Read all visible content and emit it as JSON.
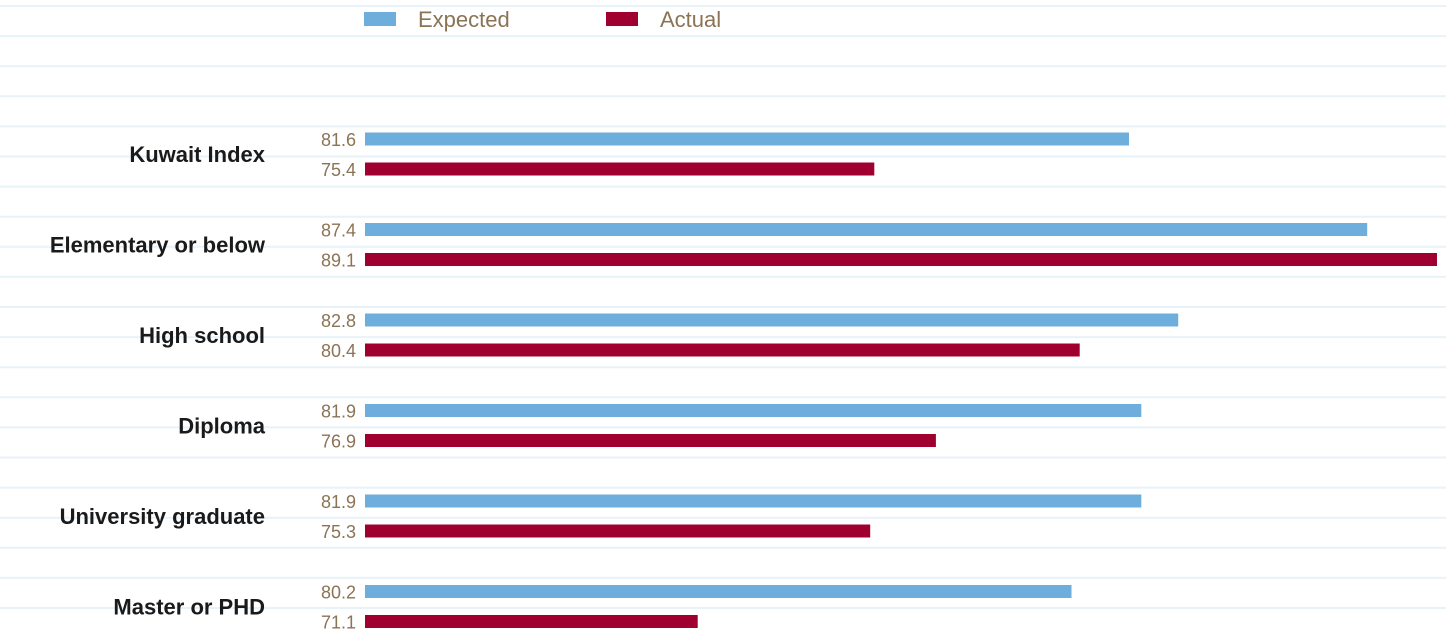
{
  "chart_data": {
    "type": "bar",
    "orientation": "horizontal",
    "grid": true,
    "legend_position": "top-left",
    "categories": [
      "Kuwait Index",
      "Elementary or below",
      "High school",
      "Diploma",
      "University graduate",
      "Master or PHD"
    ],
    "series": [
      {
        "name": "Expected",
        "color": "#6eaedc",
        "values": [
          81.6,
          87.4,
          82.8,
          81.9,
          81.9,
          80.2
        ],
        "labels": [
          "81.6",
          "87.4",
          "82.8",
          "81.9",
          "81.9",
          "80.2"
        ]
      },
      {
        "name": "Actual",
        "color": "#a00030",
        "values": [
          75.4,
          89.1,
          80.4,
          76.9,
          75.3,
          71.1
        ],
        "labels": [
          "75.4",
          "89.1",
          "80.4",
          "76.9",
          "75.3",
          "71.1"
        ]
      }
    ],
    "xlim": [
      63,
      89.1
    ],
    "colors": {
      "grid": "#e8f2f9",
      "value_text": "#8b7355",
      "category_text": "#1a1a1a",
      "legend_text": "#8b7355"
    }
  }
}
